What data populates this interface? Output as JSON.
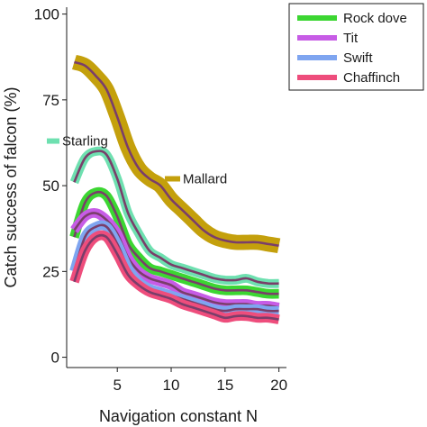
{
  "chart_data": {
    "type": "line",
    "xlabel": "Navigation constant N",
    "ylabel": "Catch success of falcon (%)",
    "xlim": [
      0.3,
      20.7
    ],
    "ylim": [
      -3,
      102
    ],
    "xticks": [
      5,
      10,
      15,
      20
    ],
    "yticks": [
      0,
      25,
      50,
      75,
      100
    ],
    "grid": false,
    "legend_placement": "top-right",
    "legend": [
      {
        "name": "Rock dove",
        "color": "#3cd632"
      },
      {
        "name": "Tit",
        "color": "#c75ce6"
      },
      {
        "name": "Swift",
        "color": "#7fa5f0"
      },
      {
        "name": "Chaffinch",
        "color": "#ee4d7c"
      }
    ],
    "center_line_color": "#7a3e6a",
    "series": [
      {
        "name": "Mallard",
        "color": "#c4a00c",
        "band": 2.2,
        "x": [
          1,
          2,
          3,
          4,
          5,
          6,
          7,
          8,
          9,
          10,
          11,
          12,
          13,
          14,
          15,
          16,
          17,
          18,
          19,
          20
        ],
        "y": [
          86,
          85,
          82,
          78,
          70,
          61,
          55,
          52,
          50,
          46,
          43,
          40,
          37,
          35,
          34,
          33.5,
          33.5,
          33.5,
          33,
          32.5
        ]
      },
      {
        "name": "Starling",
        "color": "#6ee0b0",
        "band": 1.3,
        "x": [
          1,
          2,
          3,
          4,
          5,
          6,
          7,
          8,
          9,
          10,
          11,
          12,
          13,
          14,
          15,
          16,
          17,
          18,
          19,
          20
        ],
        "y": [
          51,
          58,
          60,
          59,
          52,
          42,
          36,
          31,
          29,
          27,
          26,
          25,
          24,
          23,
          22.5,
          22.5,
          23,
          22,
          21.5,
          21.5
        ]
      },
      {
        "name": "Rock dove",
        "color": "#3cd632",
        "band": 1.4,
        "x": [
          1,
          2,
          3,
          4,
          5,
          6,
          7,
          8,
          9,
          10,
          11,
          12,
          13,
          14,
          15,
          16,
          17,
          18,
          19,
          20
        ],
        "y": [
          35,
          45,
          48,
          47,
          41,
          33,
          29,
          26,
          25,
          24,
          23,
          22,
          21,
          20,
          19.5,
          19.5,
          19.5,
          19,
          18.5,
          18.5
        ]
      },
      {
        "name": "Tit",
        "color": "#c75ce6",
        "band": 1.4,
        "x": [
          1,
          2,
          3,
          4,
          5,
          6,
          7,
          8,
          9,
          10,
          11,
          12,
          13,
          14,
          15,
          16,
          17,
          18,
          19,
          20
        ],
        "y": [
          37,
          41,
          42,
          40,
          36,
          29,
          25,
          23,
          22,
          21,
          19,
          18,
          17,
          16,
          15.5,
          15.5,
          15.5,
          15,
          15,
          14.5
        ]
      },
      {
        "name": "Swift",
        "color": "#7fa5f0",
        "band": 1.4,
        "x": [
          1,
          2,
          3,
          4,
          5,
          6,
          7,
          8,
          9,
          10,
          11,
          12,
          13,
          14,
          15,
          16,
          17,
          18,
          19,
          20
        ],
        "y": [
          25,
          35,
          38,
          38,
          33,
          26,
          22,
          20,
          19,
          18,
          17,
          16,
          15,
          14,
          13.5,
          14,
          14,
          14,
          13.5,
          13.5
        ]
      },
      {
        "name": "Chaffinch",
        "color": "#ee4d7c",
        "band": 1.4,
        "x": [
          1,
          2,
          3,
          4,
          5,
          6,
          7,
          8,
          9,
          10,
          11,
          12,
          13,
          14,
          15,
          16,
          17,
          18,
          19,
          20
        ],
        "y": [
          22,
          31,
          35,
          35,
          30,
          24,
          21,
          19,
          18,
          17,
          15.5,
          14.5,
          13.5,
          12.5,
          11.5,
          12,
          12,
          11.5,
          11.5,
          11
        ]
      }
    ],
    "annotations": [
      {
        "text": "Starling",
        "series": "Starling",
        "swatch_color": "#6ee0b0",
        "y": 63
      },
      {
        "text": "Mallard",
        "series": "Mallard",
        "swatch_color": "#c4a00c",
        "y": 52
      }
    ]
  }
}
